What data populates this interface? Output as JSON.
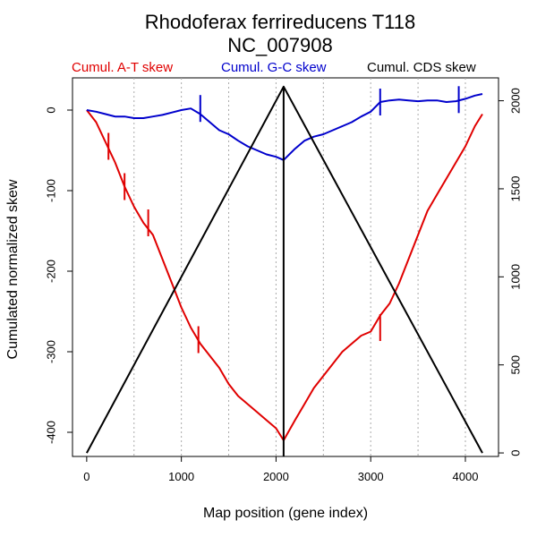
{
  "chart_data": {
    "type": "line",
    "title": "Rhodoferax ferrireducens T118",
    "subtitle": "NC_007908",
    "xlabel": "Map position (gene index)",
    "ylabel": "Cumulated normalized skew",
    "xlim": [
      -150,
      4350
    ],
    "ylim": [
      -430,
      40
    ],
    "y2lim": [
      -20,
      2130
    ],
    "x_ticks": [
      0,
      1000,
      2000,
      3000,
      4000
    ],
    "x_tick_labels": [
      "0",
      "1000",
      "2000",
      "3000",
      "4000"
    ],
    "y_ticks": [
      0,
      -100,
      -200,
      -300,
      -400
    ],
    "y_tick_labels": [
      "0",
      "-100",
      "-200",
      "-300",
      "-400"
    ],
    "y2_ticks": [
      0,
      500,
      1000,
      1500,
      2000
    ],
    "y2_tick_labels": [
      "0",
      "500",
      "1000",
      "1500",
      "2000"
    ],
    "grid": {
      "vertical_dotted": true,
      "x_positions": [
        500,
        1000,
        1500,
        2000,
        2500,
        3000,
        3500,
        4000
      ]
    },
    "vertical_line_x": 2080,
    "legend": [
      {
        "label": "Cumul. A-T skew",
        "color": "#e00000"
      },
      {
        "label": "Cumul. G-C skew",
        "color": "#0000cc"
      },
      {
        "label": "Cumul. CDS skew",
        "color": "#000000"
      }
    ],
    "series": [
      {
        "name": "Cumul. A-T skew",
        "color": "#e00000",
        "axis": "left",
        "x": [
          0,
          100,
          200,
          300,
          400,
          500,
          600,
          700,
          800,
          900,
          1000,
          1100,
          1200,
          1300,
          1400,
          1500,
          1600,
          1700,
          1800,
          1900,
          2000,
          2080,
          2200,
          2300,
          2400,
          2500,
          2600,
          2700,
          2800,
          2900,
          3000,
          3100,
          3200,
          3300,
          3400,
          3500,
          3600,
          3700,
          3800,
          3900,
          4000,
          4100,
          4180
        ],
        "y": [
          0,
          -15,
          -40,
          -65,
          -95,
          -120,
          -140,
          -155,
          -185,
          -215,
          -245,
          -270,
          -290,
          -305,
          -320,
          -340,
          -355,
          -365,
          -375,
          -385,
          -395,
          -410,
          -385,
          -365,
          -345,
          -330,
          -315,
          -300,
          -290,
          -280,
          -275,
          -255,
          -240,
          -215,
          -185,
          -155,
          -125,
          -105,
          -85,
          -65,
          -45,
          -20,
          -5
        ],
        "ticks": [
          {
            "x": 230,
            "y": -45
          },
          {
            "x": 400,
            "y": -95
          },
          {
            "x": 650,
            "y": -140
          },
          {
            "x": 1180,
            "y": -285
          },
          {
            "x": 3100,
            "y": -270
          }
        ]
      },
      {
        "name": "Cumul. G-C skew",
        "color": "#0000cc",
        "axis": "left",
        "x": [
          0,
          100,
          200,
          300,
          400,
          500,
          600,
          700,
          800,
          900,
          1000,
          1100,
          1200,
          1300,
          1400,
          1500,
          1600,
          1700,
          1800,
          1900,
          2000,
          2080,
          2200,
          2300,
          2400,
          2500,
          2600,
          2700,
          2800,
          2900,
          3000,
          3100,
          3200,
          3300,
          3400,
          3500,
          3600,
          3700,
          3800,
          3900,
          4000,
          4100,
          4180
        ],
        "y": [
          0,
          -2,
          -5,
          -8,
          -8,
          -10,
          -10,
          -8,
          -6,
          -3,
          0,
          2,
          -5,
          -15,
          -25,
          -30,
          -38,
          -45,
          -50,
          -55,
          -58,
          -62,
          -48,
          -38,
          -33,
          -30,
          -25,
          -20,
          -15,
          -8,
          -2,
          10,
          12,
          13,
          12,
          11,
          12,
          12,
          10,
          11,
          14,
          18,
          20
        ],
        "ticks": [
          {
            "x": 1200,
            "y": 2
          },
          {
            "x": 3100,
            "y": 10
          },
          {
            "x": 3930,
            "y": 13
          }
        ]
      },
      {
        "name": "Cumul. CDS skew",
        "color": "#000000",
        "axis": "right",
        "x": [
          0,
          2080,
          4180
        ],
        "y": [
          0,
          2080,
          0
        ]
      }
    ]
  }
}
